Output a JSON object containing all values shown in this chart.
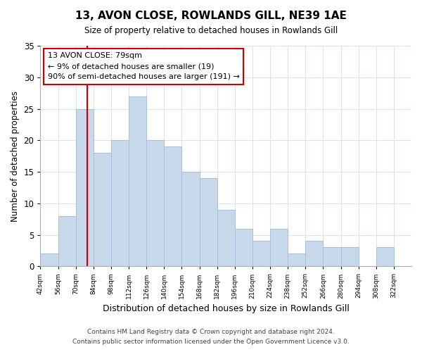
{
  "title": "13, AVON CLOSE, ROWLANDS GILL, NE39 1AE",
  "subtitle": "Size of property relative to detached houses in Rowlands Gill",
  "xlabel": "Distribution of detached houses by size in Rowlands Gill",
  "ylabel": "Number of detached properties",
  "bar_color": "#c8d8eb",
  "bar_edge_color": "#a8c0d8",
  "bin_edges": [
    42,
    56,
    70,
    84,
    98,
    112,
    126,
    140,
    154,
    168,
    182,
    196,
    210,
    224,
    238,
    252,
    266,
    280,
    294,
    308,
    322
  ],
  "counts": [
    2,
    8,
    25,
    18,
    20,
    27,
    20,
    19,
    15,
    14,
    9,
    6,
    4,
    6,
    2,
    4,
    3,
    3,
    0,
    3
  ],
  "property_value": 79,
  "vline_color": "#cc0000",
  "annotation_line1": "13 AVON CLOSE: 79sqm",
  "annotation_line2": "← 9% of detached houses are smaller (19)",
  "annotation_line3": "90% of semi-detached houses are larger (191) →",
  "annotation_box_color": "#ffffff",
  "annotation_box_edge_color": "#cc0000",
  "ylim": [
    0,
    35
  ],
  "yticks": [
    0,
    5,
    10,
    15,
    20,
    25,
    30,
    35
  ],
  "footer1": "Contains HM Land Registry data © Crown copyright and database right 2024.",
  "footer2": "Contains public sector information licensed under the Open Government Licence v3.0.",
  "background_color": "#ffffff",
  "grid_color": "#d8e4f0",
  "xlim_right": 336
}
